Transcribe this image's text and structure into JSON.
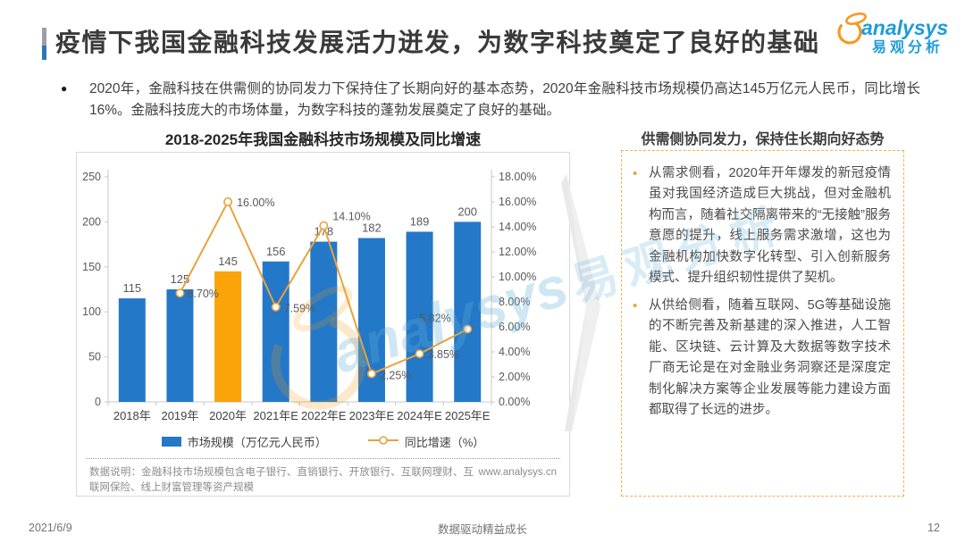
{
  "page": {
    "title": "疫情下我国金融科技发展活力迸发，为数字科技奠定了良好的基础",
    "intro_bullet": "●",
    "intro": "2020年，金融科技在供需侧的协同发力下保持住了长期向好的基本态势，2020年金融科技市场规模仍高达145万亿元人民币，同比增长16%。金融科技庞大的市场体量，为数字科技的蓬勃发展奠定了良好的基础。",
    "footer": {
      "date": "2021/6/9",
      "center": "数据驱动精益成长",
      "page_number": "12"
    }
  },
  "logo": {
    "en": "analysys",
    "cn": "易观分析",
    "orange": "#F59A23",
    "blue": "#1E9CD7"
  },
  "chart_card": {
    "title": "2018-2025年我国金融科技市场规模及同比增速",
    "legend": [
      {
        "type": "bar",
        "label": "市场规模（万亿元人民币）"
      },
      {
        "type": "line",
        "label": "同比增速（%）"
      }
    ],
    "footnote": "数据说明：金融科技市场规模包含电子银行、直销银行、开放银行、互联网理财、互联网保险、线上财富管理等资产规模",
    "source_url": "www.analysys.cn"
  },
  "chart_data": {
    "type": "bar",
    "title": "2018-2025年我国金融科技市场规模及同比增速",
    "categories": [
      "2018年",
      "2019年",
      "2020年",
      "2021年E",
      "2022年E",
      "2023年E",
      "2024年E",
      "2025年E"
    ],
    "series": [
      {
        "name": "市场规模（万亿元人民币）",
        "type": "bar",
        "values": [
          115,
          125,
          145,
          156,
          178,
          182,
          189,
          200
        ]
      },
      {
        "name": "同比增速（%）",
        "type": "line",
        "values": [
          null,
          8.7,
          16.0,
          7.59,
          14.1,
          2.25,
          3.85,
          5.82
        ],
        "point_labels": [
          null,
          "8.70%",
          "16.00%",
          "7.59%",
          "14.10%",
          "2.25%",
          "3.85%",
          "5.82%"
        ]
      }
    ],
    "left_axis": {
      "min": 0,
      "max": 250,
      "step": 50
    },
    "right_axis": {
      "min": 0,
      "max": 18,
      "step": 2,
      "format": "percent"
    },
    "bar_color": "#2478C8",
    "highlight_index": 2,
    "highlight_color": "#FAA40A",
    "line_color": "#E9A23B",
    "grid": false,
    "legend_position": "bottom"
  },
  "right_panel": {
    "title": "供需侧协同发力，保持住长期向好态势",
    "bullet_marker": "•",
    "bullets": [
      "从需求侧看，2020年开年爆发的新冠疫情虽对我国经济造成巨大挑战，但对金融机构而言，随着社交隔离带来的“无接触”服务意愿的提升，线上服务需求激增，这也为金融机构加快数字化转型、引入创新服务模式、提升组织韧性提供了契机。",
      "从供给侧看，随着互联网、5G等基础设施的不断完善及新基建的深入推进，人工智能、区块链、云计算及大数据等数字技术厂商无论是在对金融业务洞察还是深度定制化解决方案等企业发展等能力建设方面都取得了长远的进步。"
    ]
  },
  "watermark": {
    "en": "analysys",
    "cn": "易观分析"
  }
}
